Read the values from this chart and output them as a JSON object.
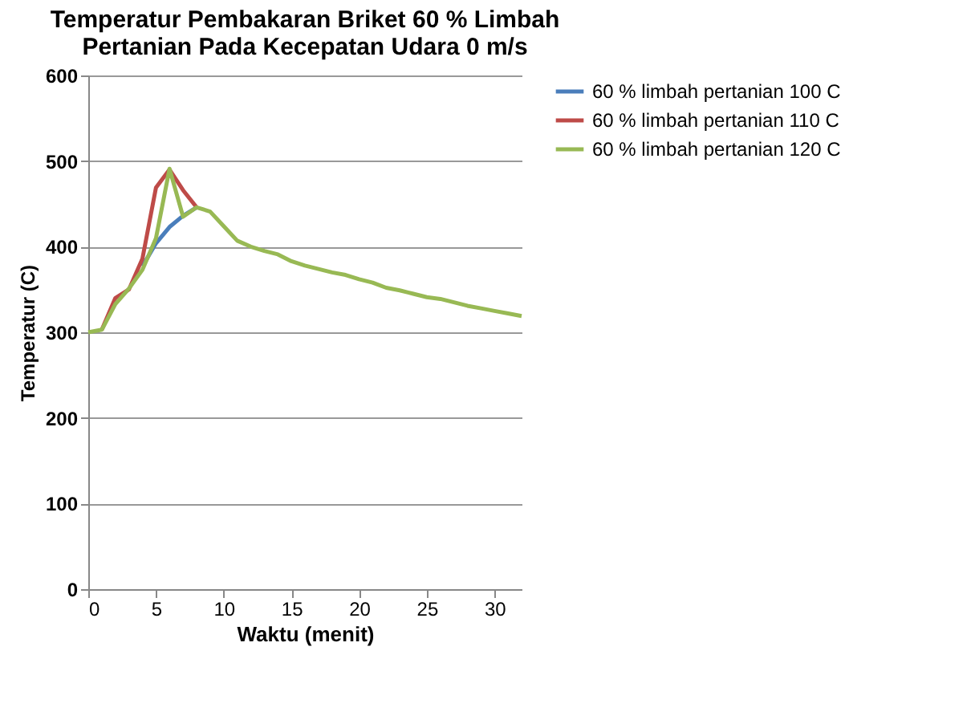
{
  "chart_data": {
    "type": "line",
    "title": "Temperatur Pembakaran  Briket 60 % Limbah Pertanian Pada Kecepatan Udara 0 m/s",
    "xlabel": "Waktu (menit)",
    "ylabel": "Temperatur (C)",
    "x": [
      0,
      1,
      2,
      3,
      4,
      5,
      6,
      7,
      8,
      9,
      10,
      11,
      12,
      13,
      14,
      15,
      16,
      17,
      18,
      19,
      20,
      21,
      22,
      23,
      24,
      25,
      26,
      27,
      28,
      29,
      30,
      31,
      32
    ],
    "series": [
      {
        "name": "60 % limbah pertanian 100 C",
        "color": "#4a7ebb",
        "values": [
          null,
          null,
          null,
          null,
          377,
          404,
          423,
          436,
          446,
          null,
          null,
          null,
          null,
          null,
          null,
          null,
          null,
          null,
          null,
          null,
          null,
          null,
          null,
          null,
          null,
          null,
          null,
          null,
          null,
          null,
          null,
          null,
          null
        ]
      },
      {
        "name": "60 % limbah pertanian 110 C",
        "color": "#be4b48",
        "values": [
          null,
          303,
          340,
          350,
          386,
          469,
          490,
          466,
          446,
          null,
          null,
          null,
          null,
          null,
          null,
          null,
          null,
          null,
          null,
          null,
          null,
          null,
          null,
          null,
          null,
          null,
          null,
          null,
          null,
          null,
          null,
          null,
          null
        ]
      },
      {
        "name": "60 % limbah pertanian 120 C",
        "color": "#98b954",
        "values": [
          300,
          303,
          333,
          351,
          373,
          410,
          491,
          435,
          446,
          441,
          424,
          407,
          400,
          395,
          391,
          383,
          378,
          374,
          370,
          367,
          362,
          358,
          352,
          349,
          345,
          341,
          339,
          335,
          331,
          328,
          325,
          322,
          319
        ]
      }
    ],
    "xlim": [
      0,
      32
    ],
    "xticks": [
      0,
      5,
      10,
      15,
      20,
      25,
      30
    ],
    "ylim": [
      0,
      600
    ],
    "yticks": [
      0,
      100,
      200,
      300,
      400,
      500,
      600
    ],
    "grid": "y",
    "legend": "right"
  }
}
